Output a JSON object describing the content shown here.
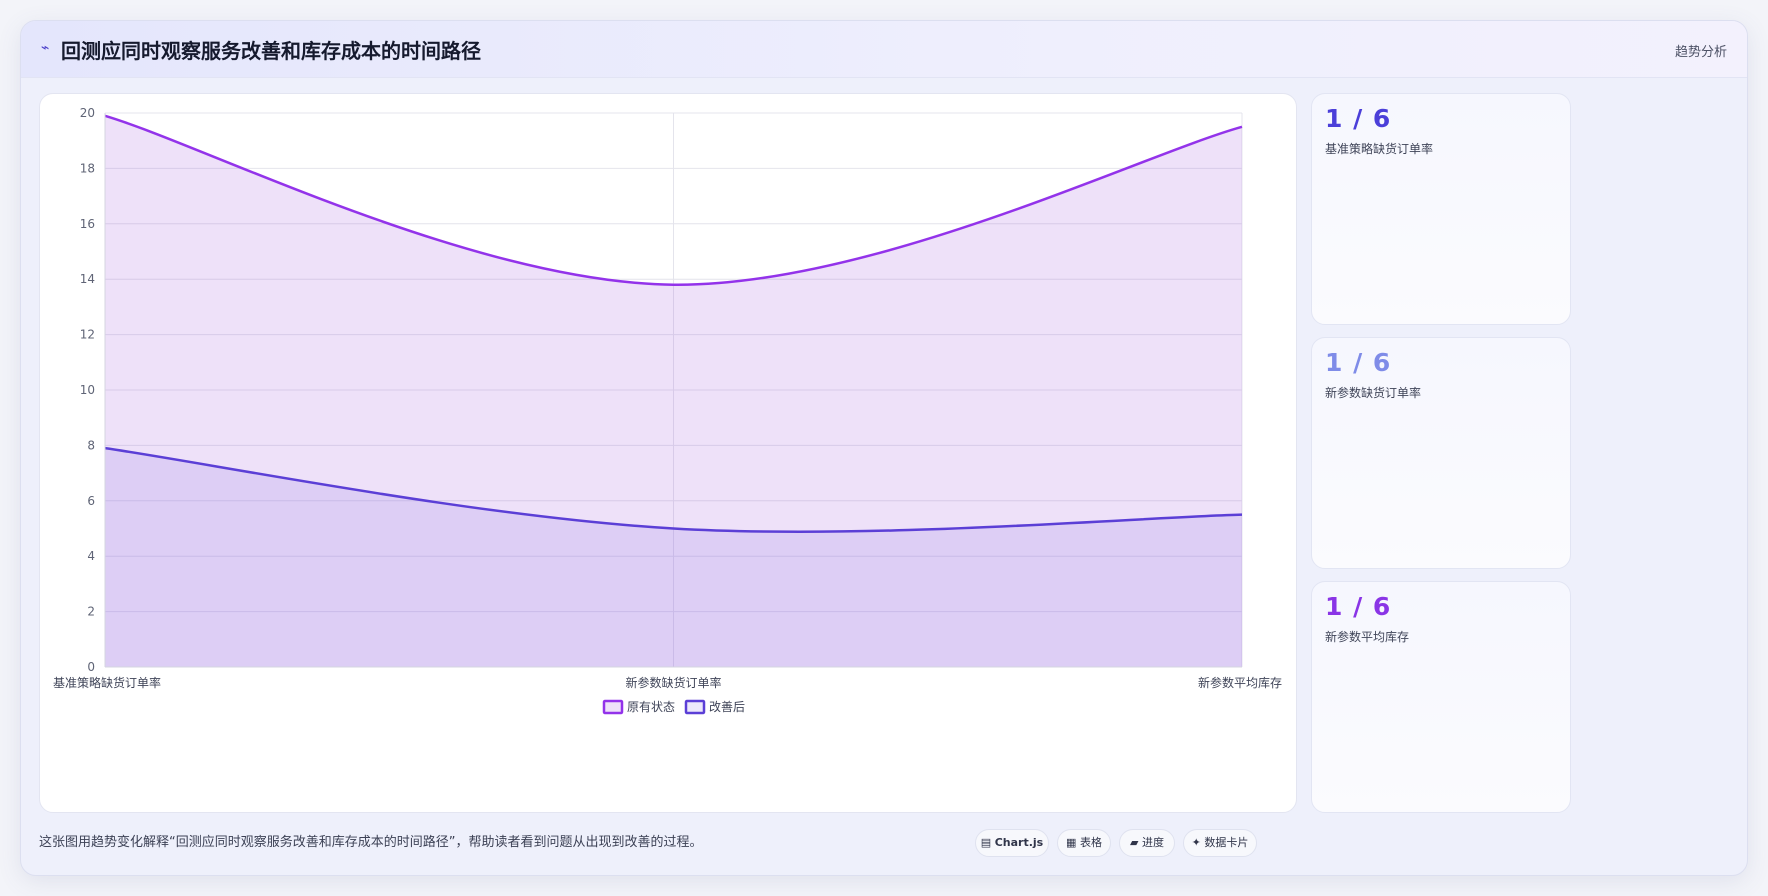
{
  "header": {
    "icon": "trend-icon",
    "title": "回测应同时观察服务改善和库存成本的时间路径",
    "tag": "趋势分析"
  },
  "chart_data": {
    "type": "area",
    "categories": [
      "基准策略缺货订单率",
      "新参数缺货订单率",
      "新参数平均库存"
    ],
    "series": [
      {
        "name": "原有状态",
        "values": [
          19.9,
          13.8,
          19.5
        ],
        "color": "#9333ea",
        "fill": "rgba(160, 90, 220, 0.18)"
      },
      {
        "name": "改善后",
        "values": [
          7.9,
          5.0,
          5.5
        ],
        "color": "#5b3fd6",
        "fill": "rgba(120, 90, 230, 0.14)"
      }
    ],
    "ylim": [
      0,
      20
    ],
    "yticks": [
      0,
      2,
      4,
      6,
      8,
      10,
      12,
      14,
      16,
      18,
      20
    ],
    "grid": true,
    "legend": "bottom"
  },
  "kpis": [
    {
      "value": "1 / 6",
      "label": "基准策略缺货订单率",
      "color": "#4b3fd9"
    },
    {
      "value": "1 / 6",
      "label": "新参数缺货订单率",
      "color": "#7f8ce8"
    },
    {
      "value": "1 / 6",
      "label": "新参数平均库存",
      "color": "#8a35e6"
    }
  ],
  "caption": "这张图用趋势变化解释“回测应同时观察服务改善和库存成本的时间路径”，帮助读者看到问题从出现到改善的过程。",
  "tools": [
    {
      "icon": "chart-icon",
      "label": "Chart.js"
    },
    {
      "icon": "table-icon",
      "label": "表格"
    },
    {
      "icon": "progress-icon",
      "label": "进度"
    },
    {
      "icon": "sparkle-icon",
      "label": "数据卡片"
    }
  ]
}
